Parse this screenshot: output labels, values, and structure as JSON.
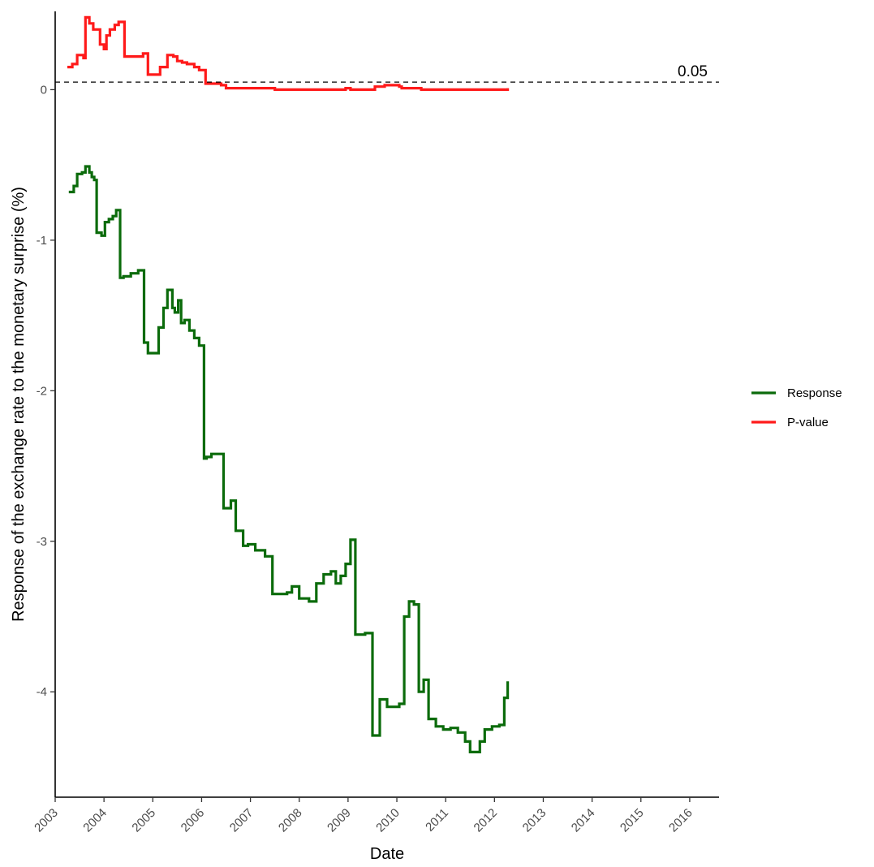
{
  "chart_data": {
    "type": "line",
    "xlabel": "Date",
    "ylabel": "Response of the exchange rate to the monetary surprise (%)",
    "x_ticks": [
      "2003",
      "2004",
      "2005",
      "2006",
      "2007",
      "2008",
      "2009",
      "2010",
      "2011",
      "2012",
      "2013",
      "2014",
      "2015",
      "2016"
    ],
    "y_ticks": [
      "0",
      "-1",
      "-2",
      "-3",
      "-4"
    ],
    "xlim": [
      2003.0,
      2016.6
    ],
    "ylim": [
      -4.7,
      0.52
    ],
    "grid": false,
    "legend_position": "right",
    "reference_line": {
      "y": 0.05,
      "label": "0.05",
      "style": "dashed",
      "color": "#000000"
    },
    "series": [
      {
        "name": "Response",
        "color": "#0b6b0b",
        "step": true,
        "x": [
          2003.28,
          2003.38,
          2003.45,
          2003.55,
          2003.62,
          2003.7,
          2003.75,
          2003.8,
          2003.85,
          2003.95,
          2004.02,
          2004.1,
          2004.18,
          2004.25,
          2004.33,
          2004.4,
          2004.55,
          2004.7,
          2004.82,
          2004.9,
          2005.0,
          2005.12,
          2005.22,
          2005.3,
          2005.4,
          2005.45,
          2005.52,
          2005.58,
          2005.65,
          2005.75,
          2005.85,
          2005.95,
          2006.05,
          2006.1,
          2006.2,
          2006.45,
          2006.6,
          2006.7,
          2006.85,
          2006.95,
          2007.1,
          2007.3,
          2007.45,
          2007.6,
          2007.75,
          2007.85,
          2008.0,
          2008.2,
          2008.35,
          2008.5,
          2008.65,
          2008.75,
          2008.85,
          2008.95,
          2009.05,
          2009.15,
          2009.35,
          2009.5,
          2009.65,
          2009.8,
          2009.95,
          2010.05,
          2010.15,
          2010.25,
          2010.35,
          2010.45,
          2010.55,
          2010.65,
          2010.8,
          2010.95,
          2011.1,
          2011.25,
          2011.4,
          2011.5,
          2011.6,
          2011.7,
          2011.8,
          2011.95,
          2012.1,
          2012.2,
          2012.27
        ],
        "y": [
          -0.68,
          -0.64,
          -0.56,
          -0.55,
          -0.51,
          -0.55,
          -0.58,
          -0.6,
          -0.95,
          -0.97,
          -0.88,
          -0.86,
          -0.84,
          -0.8,
          -1.25,
          -1.24,
          -1.22,
          -1.2,
          -1.68,
          -1.75,
          -1.75,
          -1.58,
          -1.45,
          -1.33,
          -1.45,
          -1.48,
          -1.4,
          -1.55,
          -1.53,
          -1.6,
          -1.65,
          -1.7,
          -2.45,
          -2.44,
          -2.42,
          -2.78,
          -2.73,
          -2.93,
          -3.03,
          -3.02,
          -3.06,
          -3.1,
          -3.35,
          -3.35,
          -3.34,
          -3.3,
          -3.38,
          -3.4,
          -3.28,
          -3.22,
          -3.2,
          -3.28,
          -3.23,
          -3.15,
          -2.99,
          -3.62,
          -3.61,
          -4.29,
          -4.05,
          -4.1,
          -4.1,
          -4.08,
          -3.5,
          -3.4,
          -3.42,
          -4.0,
          -3.92,
          -4.18,
          -4.23,
          -4.25,
          -4.24,
          -4.27,
          -4.33,
          -4.4,
          -4.4,
          -4.33,
          -4.25,
          -4.23,
          -4.22,
          -4.04,
          -3.93
        ]
      },
      {
        "name": "P-value",
        "color": "#ff1a1a",
        "step": true,
        "x": [
          2003.25,
          2003.35,
          2003.45,
          2003.58,
          2003.62,
          2003.7,
          2003.78,
          2003.92,
          2004.0,
          2004.05,
          2004.12,
          2004.22,
          2004.3,
          2004.42,
          2004.8,
          2004.9,
          2005.15,
          2005.3,
          2005.42,
          2005.5,
          2005.6,
          2005.7,
          2005.85,
          2005.95,
          2006.08,
          2006.4,
          2006.5,
          2007.0,
          2007.5,
          2008.0,
          2008.5,
          2008.95,
          2009.05,
          2009.35,
          2009.55,
          2009.75,
          2010.05,
          2010.1,
          2010.5,
          2011.0,
          2011.5,
          2012.0,
          2012.27
        ],
        "y": [
          0.15,
          0.17,
          0.23,
          0.21,
          0.48,
          0.44,
          0.4,
          0.3,
          0.27,
          0.36,
          0.4,
          0.43,
          0.45,
          0.22,
          0.24,
          0.1,
          0.15,
          0.23,
          0.22,
          0.19,
          0.18,
          0.17,
          0.15,
          0.13,
          0.04,
          0.03,
          0.01,
          0.01,
          0.0,
          0.0,
          0.0,
          0.01,
          0.0,
          0.0,
          0.02,
          0.03,
          0.02,
          0.01,
          0.0,
          0.0,
          0.0,
          0.0,
          0.01
        ]
      }
    ]
  }
}
